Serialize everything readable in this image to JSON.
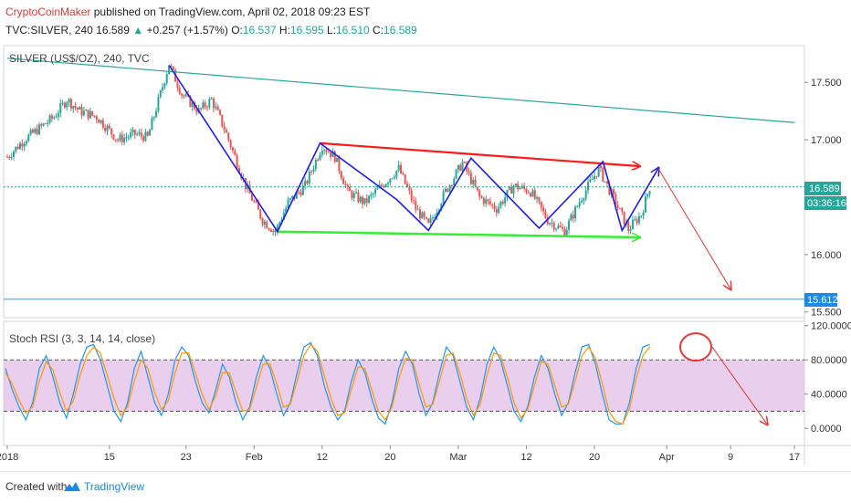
{
  "header": {
    "author": "CryptoCoinMaker",
    "published_text": "published on TradingView.com, April 02, 2018 09:23 EST"
  },
  "symbol_line": {
    "symbol": "TVC:SILVER, 240",
    "price": "16.589",
    "change_arrow": "▲",
    "change": "+0.257 (+1.57%)",
    "o_label": "O:",
    "o_value": "16.537",
    "h_label": "H:",
    "h_value": "16.595",
    "l_label": "L:",
    "l_value": "16.510",
    "c_label": "C:",
    "c_value": "16.589"
  },
  "footer": {
    "created_with": "Created with",
    "brand": "TradingView"
  },
  "colors": {
    "up": "#26a69a",
    "down": "#ef5350",
    "pattern_blue": "#1e1ef0",
    "resistance_red": "#ff1a1a",
    "support_green": "#33ee33",
    "trendline": "#26a69a",
    "level_line": "#4fc3f7",
    "rsi_k": "#2196f3",
    "rsi_d": "#ff9800",
    "rsi_band": "#e1bee7",
    "projection": "#e53935"
  },
  "chart_data": [
    {
      "type": "candlestick",
      "title": "SILVER (US$/OZ), 240, TVC",
      "y_axis": {
        "ticks": [
          "17.500",
          "17.000",
          "16.000",
          "15.500"
        ],
        "range": [
          15.45,
          17.82
        ],
        "current_price_label": "16.589",
        "countdown_label": "03:36:16",
        "level_label": "15.612"
      },
      "x_axis": {
        "ticks": [
          "2018",
          "15",
          "23",
          "Feb",
          "12",
          "20",
          "Mar",
          "12",
          "20",
          "Apr",
          "9",
          "17"
        ]
      },
      "price_path": [
        {
          "t": 0,
          "v": 16.85
        },
        {
          "t": 8,
          "v": 17.0
        },
        {
          "t": 15,
          "v": 17.1
        },
        {
          "t": 22,
          "v": 17.2
        },
        {
          "t": 28,
          "v": 17.35
        },
        {
          "t": 34,
          "v": 17.25
        },
        {
          "t": 42,
          "v": 17.2
        },
        {
          "t": 52,
          "v": 17.0
        },
        {
          "t": 60,
          "v": 17.05
        },
        {
          "t": 66,
          "v": 17.02
        },
        {
          "t": 72,
          "v": 17.4
        },
        {
          "t": 76,
          "v": 17.66
        },
        {
          "t": 82,
          "v": 17.4
        },
        {
          "t": 90,
          "v": 17.25
        },
        {
          "t": 96,
          "v": 17.35
        },
        {
          "t": 102,
          "v": 17.1
        },
        {
          "t": 108,
          "v": 16.8
        },
        {
          "t": 112,
          "v": 16.6
        },
        {
          "t": 120,
          "v": 16.3
        },
        {
          "t": 126,
          "v": 16.2
        },
        {
          "t": 132,
          "v": 16.45
        },
        {
          "t": 140,
          "v": 16.6
        },
        {
          "t": 148,
          "v": 16.95
        },
        {
          "t": 154,
          "v": 16.85
        },
        {
          "t": 160,
          "v": 16.55
        },
        {
          "t": 168,
          "v": 16.45
        },
        {
          "t": 176,
          "v": 16.6
        },
        {
          "t": 184,
          "v": 16.75
        },
        {
          "t": 192,
          "v": 16.4
        },
        {
          "t": 198,
          "v": 16.25
        },
        {
          "t": 206,
          "v": 16.55
        },
        {
          "t": 214,
          "v": 16.8
        },
        {
          "t": 222,
          "v": 16.5
        },
        {
          "t": 230,
          "v": 16.4
        },
        {
          "t": 238,
          "v": 16.6
        },
        {
          "t": 246,
          "v": 16.55
        },
        {
          "t": 254,
          "v": 16.3
        },
        {
          "t": 262,
          "v": 16.2
        },
        {
          "t": 270,
          "v": 16.5
        },
        {
          "t": 278,
          "v": 16.75
        },
        {
          "t": 286,
          "v": 16.45
        },
        {
          "t": 292,
          "v": 16.22
        },
        {
          "t": 298,
          "v": 16.35
        },
        {
          "t": 302,
          "v": 16.59
        }
      ],
      "annotations": {
        "trendline": [
          {
            "t": 0,
            "v": 17.71
          },
          {
            "t": 370,
            "v": 17.15
          }
        ],
        "resistance": [
          {
            "t": 147,
            "v": 16.97
          },
          {
            "t": 297,
            "v": 16.77
          }
        ],
        "support": [
          {
            "t": 127,
            "v": 16.2
          },
          {
            "t": 297,
            "v": 16.15
          }
        ],
        "pattern_zigzag": [
          {
            "t": 76,
            "v": 17.65
          },
          {
            "t": 127,
            "v": 16.2
          },
          {
            "t": 147,
            "v": 16.97
          },
          {
            "t": 183,
            "v": 16.48
          },
          {
            "t": 198,
            "v": 16.21
          },
          {
            "t": 218,
            "v": 16.84
          },
          {
            "t": 250,
            "v": 16.23
          },
          {
            "t": 280,
            "v": 16.81
          },
          {
            "t": 289,
            "v": 16.21
          },
          {
            "t": 306,
            "v": 16.75
          }
        ],
        "projection": [
          {
            "t": 306,
            "v": 16.75
          },
          {
            "t": 340,
            "v": 15.7
          }
        ],
        "level": 15.612
      }
    },
    {
      "type": "line",
      "title": "Stoch RSI (3, 3, 14, 14, close)",
      "y_axis": {
        "ticks": [
          "120.0000",
          "80.0000",
          "40.0000",
          "0.0000"
        ],
        "range": [
          -20,
          125
        ]
      },
      "bands": {
        "upper": 80,
        "lower": 20
      },
      "series": [
        {
          "color": "#2196f3",
          "values": [
            70,
            45,
            25,
            10,
            30,
            70,
            85,
            60,
            30,
            12,
            40,
            75,
            95,
            98,
            80,
            50,
            20,
            8,
            30,
            70,
            90,
            60,
            30,
            15,
            40,
            80,
            95,
            85,
            55,
            30,
            18,
            45,
            75,
            60,
            30,
            10,
            25,
            60,
            85,
            70,
            40,
            15,
            30,
            65,
            95,
            100,
            85,
            50,
            25,
            10,
            20,
            55,
            80,
            65,
            35,
            12,
            5,
            30,
            70,
            90,
            75,
            40,
            15,
            30,
            65,
            95,
            85,
            55,
            25,
            10,
            35,
            75,
            95,
            80,
            50,
            20,
            8,
            25,
            60,
            85,
            70,
            40,
            15,
            30,
            65,
            95,
            98,
            75,
            40,
            10,
            5,
            5,
            30,
            70,
            95,
            98
          ]
        },
        {
          "color": "#ff9800",
          "values": [
            65,
            52,
            33,
            18,
            25,
            55,
            78,
            68,
            42,
            20,
            32,
            62,
            85,
            95,
            88,
            62,
            35,
            15,
            25,
            55,
            80,
            70,
            42,
            22,
            32,
            65,
            88,
            88,
            65,
            40,
            22,
            38,
            65,
            65,
            42,
            20,
            22,
            48,
            75,
            75,
            52,
            25,
            28,
            55,
            85,
            98,
            90,
            62,
            35,
            15,
            18,
            45,
            72,
            70,
            45,
            20,
            10,
            25,
            58,
            82,
            80,
            52,
            25,
            28,
            55,
            85,
            88,
            65,
            35,
            15,
            28,
            62,
            88,
            85,
            60,
            30,
            12,
            22,
            50,
            78,
            75,
            50,
            25,
            28,
            55,
            85,
            95,
            82,
            52,
            20,
            8,
            5,
            22,
            58,
            85,
            95
          ]
        }
      ],
      "annotations": {
        "circle_highlight": true,
        "projection": [
          {
            "t": 0.78,
            "v": 95
          },
          {
            "t": 0.96,
            "v": 5
          }
        ]
      }
    }
  ]
}
